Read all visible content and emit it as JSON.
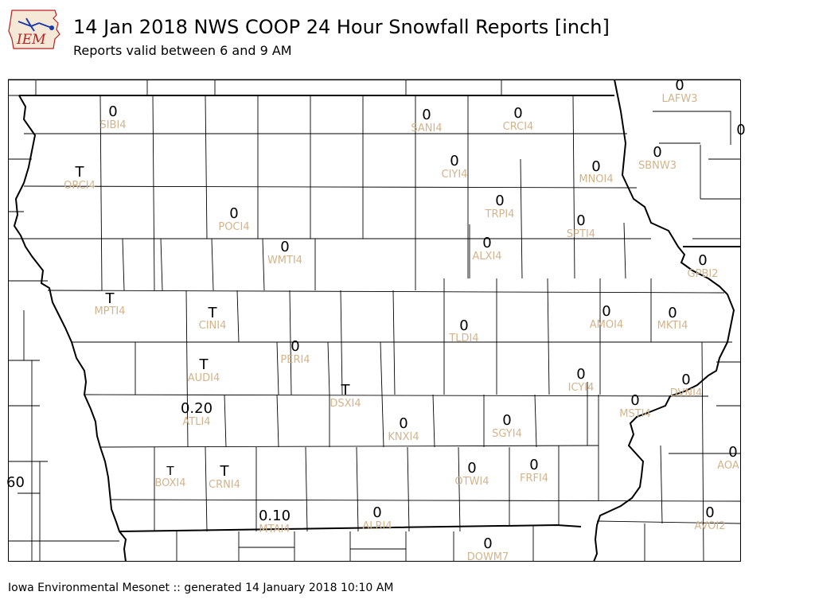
{
  "header": {
    "title": "14 Jan 2018 NWS COOP 24 Hour Snowfall Reports [inch]",
    "subtitle": "Reports valid between 6 and 9 AM",
    "logo_text": "IEM"
  },
  "footer": {
    "text": "Iowa Environmental Mesonet :: generated 14 January 2018 10:10 AM"
  },
  "colors": {
    "station_id": "#d2b48c",
    "value": "#000000",
    "logo_accent": "#1a3aa8",
    "logo_text": "#b22222"
  },
  "stations": [
    {
      "id": "SIBI4",
      "value": "0"
    },
    {
      "id": "SANI4",
      "value": "0"
    },
    {
      "id": "CRCI4",
      "value": "0"
    },
    {
      "id": "LAFW3",
      "value": "0"
    },
    {
      "id": "ORCI4",
      "value": "T"
    },
    {
      "id": "CIYI4",
      "value": "0"
    },
    {
      "id": "MNOI4",
      "value": "0"
    },
    {
      "id": "SBNW3",
      "value": "0"
    },
    {
      "id": "POCI4",
      "value": "0"
    },
    {
      "id": "TRPI4",
      "value": "0"
    },
    {
      "id": "SPTI4",
      "value": "0"
    },
    {
      "id": "WMTI4",
      "value": "0"
    },
    {
      "id": "ALXI4",
      "value": "0"
    },
    {
      "id": "GPBI2",
      "value": "0"
    },
    {
      "id": "MPTI4",
      "value": "T"
    },
    {
      "id": "CINI4",
      "value": "T"
    },
    {
      "id": "TLDI4",
      "value": "0"
    },
    {
      "id": "AMOI4",
      "value": "0"
    },
    {
      "id": "MKTI4",
      "value": "0"
    },
    {
      "id": "PERI4",
      "value": "0"
    },
    {
      "id": "AUDI4",
      "value": "T"
    },
    {
      "id": "ICYI4",
      "value": "0"
    },
    {
      "id": "DVNI4",
      "value": "0"
    },
    {
      "id": "DSXI4",
      "value": "T"
    },
    {
      "id": "ATLI4",
      "value": "0.20"
    },
    {
      "id": "MSTI4",
      "value": "0"
    },
    {
      "id": "KNXI4",
      "value": "0"
    },
    {
      "id": "SGYI4",
      "value": "0"
    },
    {
      "id": "AOA",
      "value": "0"
    },
    {
      "id": "BOXI4",
      "value": "T"
    },
    {
      "id": "CRNI4",
      "value": "T"
    },
    {
      "id": "OTWI4",
      "value": "0"
    },
    {
      "id": "FRFI4",
      "value": "0"
    },
    {
      "id": "MTAI4",
      "value": "0.10"
    },
    {
      "id": "ALRI4",
      "value": "0"
    },
    {
      "id": "AVOI2",
      "value": "0"
    },
    {
      "id": "DOWM7",
      "value": "0"
    }
  ],
  "edge_values": [
    "0",
    "60"
  ]
}
